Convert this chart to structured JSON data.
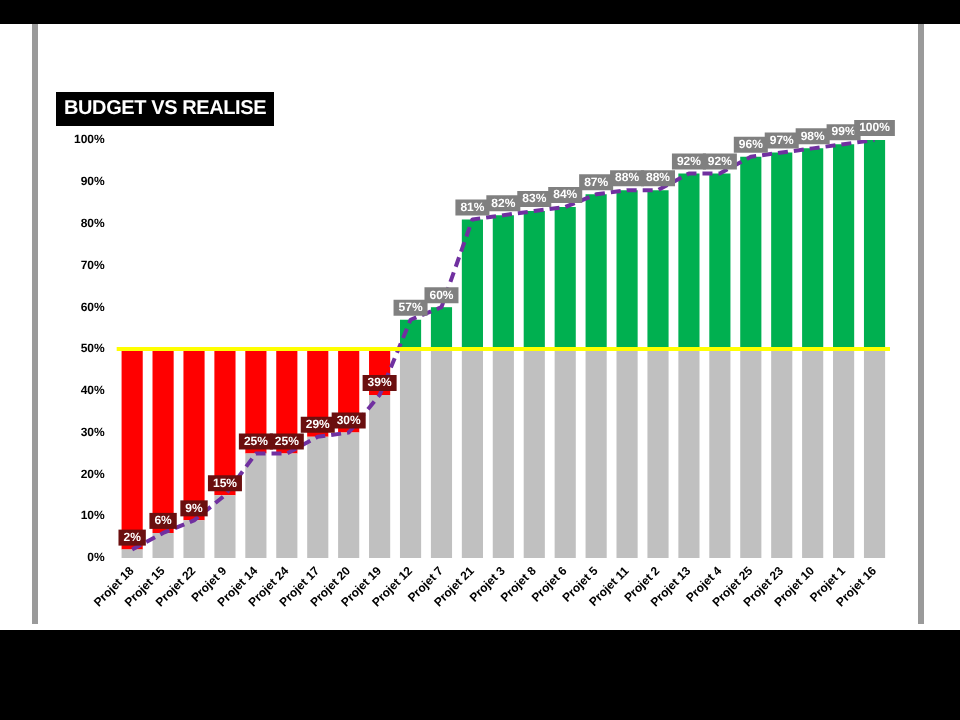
{
  "chart_data": {
    "type": "bar",
    "title": "BUDGET VS REALISE",
    "stacked": true,
    "categories": [
      "Projet 18",
      "Projet 15",
      "Projet 22",
      "Projet 9",
      "Projet 14",
      "Projet 24",
      "Projet 17",
      "Projet 20",
      "Projet 19",
      "Projet 12",
      "Projet 7",
      "Projet 21",
      "Projet 3",
      "Projet 8",
      "Projet 6",
      "Projet 5",
      "Projet 11",
      "Projet 2",
      "Projet 13",
      "Projet 4",
      "Projet 25",
      "Projet 23",
      "Projet 10",
      "Projet 1",
      "Projet 16"
    ],
    "series": [
      {
        "color": "#c0c0c0",
        "values": [
          2,
          6,
          9,
          15,
          25,
          25,
          29,
          30,
          39,
          50,
          50,
          50,
          50,
          50,
          50,
          50,
          50,
          50,
          50,
          50,
          50,
          50,
          50,
          50,
          50
        ]
      },
      {
        "color": "#ff0000",
        "values": [
          48,
          44,
          41,
          35,
          25,
          25,
          21,
          20,
          11,
          null,
          null,
          null,
          null,
          null,
          null,
          null,
          null,
          null,
          null,
          null,
          null,
          null,
          null,
          null,
          null
        ]
      },
      {
        "color": "#00b050",
        "values": [
          null,
          null,
          null,
          null,
          null,
          null,
          null,
          null,
          null,
          7,
          10,
          31,
          32,
          33,
          34,
          37,
          38,
          38,
          42,
          42,
          46,
          47,
          48,
          49,
          50
        ]
      },
      {
        "type": "line",
        "color": "#7030a0",
        "line_style": "dashed",
        "values": [
          2,
          6,
          9,
          15,
          25,
          25,
          29,
          30,
          39,
          57,
          60,
          81,
          82,
          83,
          84,
          87,
          88,
          88,
          92,
          92,
          96,
          97,
          98,
          99,
          100
        ],
        "value_labels": [
          "2%",
          "6%",
          "9%",
          "15%",
          "25%",
          "25%",
          "29%",
          "30%",
          "39%",
          "57%",
          "60%",
          "81%",
          "82%",
          "83%",
          "84%",
          "87%",
          "88%",
          "88%",
          "92%",
          "92%",
          "96%",
          "97%",
          "98%",
          "99%",
          "100%"
        ]
      }
    ],
    "marker": "none",
    "grid": false,
    "legend": false,
    "ylim": [
      0,
      100
    ],
    "yticks": [
      {
        "value": 0,
        "label": "0%"
      },
      {
        "value": 10,
        "label": "10%"
      },
      {
        "value": 20,
        "label": "20%"
      },
      {
        "value": 30,
        "label": "30%"
      },
      {
        "value": 40,
        "label": "40%"
      },
      {
        "value": 50,
        "label": "50%"
      },
      {
        "value": 60,
        "label": "60%"
      },
      {
        "value": 70,
        "label": "70%"
      },
      {
        "value": 80,
        "label": "80%"
      },
      {
        "value": 90,
        "label": "90%"
      },
      {
        "value": 100,
        "label": "100%"
      }
    ],
    "ref_lines": [
      {
        "axis": "y",
        "value": 50,
        "color": "#ffff00"
      }
    ]
  }
}
